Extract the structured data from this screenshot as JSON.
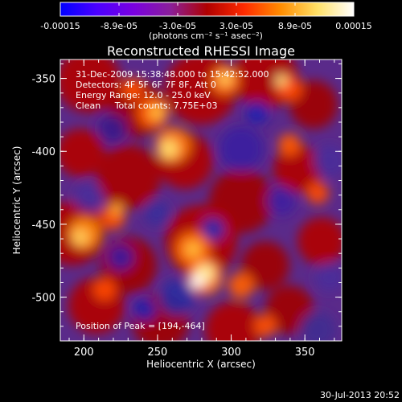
{
  "colorbar": {
    "tick_labels": [
      "-0.00015",
      "-8.9e-05",
      "-3.0e-05",
      "3.0e-05",
      "8.9e-05",
      "0.00015"
    ],
    "units": "(photons cm⁻² s⁻¹ asec⁻²)",
    "gradient_colors": [
      "#0000ff",
      "#4b00ff",
      "#7a00e0",
      "#8a1f9a",
      "#b00000",
      "#ff2a00",
      "#ff8c00",
      "#ffe066",
      "#ffffff"
    ]
  },
  "image": {
    "title": "Reconstructed RHESSI Image",
    "info_line1": "31-Dec-2009 15:38:48.000 to 15:42:52.000",
    "info_line2": "Detectors: 4F 5F 6F 7F 8F, Att 0",
    "info_line3": "Energy Range: 12.0 - 25.0 keV",
    "info_line4": "Clean     Total counts: 7.75E+03",
    "peak_label": "Position of Peak = [194,-464]",
    "footer_date": "30-Jul-2013 20:52"
  },
  "axes": {
    "x_label": "Heliocentric X (arcsec)",
    "y_label": "Heliocentric Y (arcsec)",
    "x_ticks": [
      "200",
      "250",
      "300",
      "350"
    ],
    "y_ticks": [
      "-350",
      "-400",
      "-450",
      "-500"
    ],
    "x_range": [
      184,
      375
    ],
    "y_range": [
      -530,
      -337
    ]
  }
}
